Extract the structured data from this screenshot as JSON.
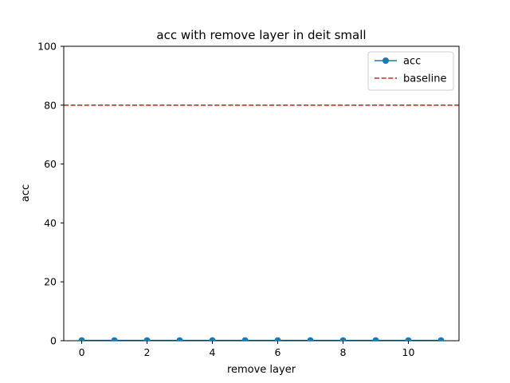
{
  "chart_data": {
    "type": "line",
    "title": "acc with remove layer in deit small",
    "xlabel": "remove layer",
    "ylabel": "acc",
    "xlim": [
      -0.55,
      11.55
    ],
    "ylim": [
      0,
      100
    ],
    "xticks": [
      0,
      2,
      4,
      6,
      8,
      10
    ],
    "yticks": [
      0,
      20,
      40,
      60,
      80,
      100
    ],
    "grid": false,
    "legend_position": "top-right",
    "series": [
      {
        "name": "acc",
        "style": "line-marker",
        "color": "#1f77b4",
        "x": [
          0,
          1,
          2,
          3,
          4,
          5,
          6,
          7,
          8,
          9,
          10,
          11
        ],
        "y": [
          0.1,
          0.1,
          0.1,
          0.1,
          0.1,
          0.1,
          0.1,
          0.1,
          0.1,
          0.1,
          0.1,
          0.1
        ]
      }
    ],
    "reference_lines": [
      {
        "name": "baseline",
        "orientation": "horizontal",
        "y": 80,
        "style": "dashed",
        "color": "#d62728"
      }
    ]
  }
}
